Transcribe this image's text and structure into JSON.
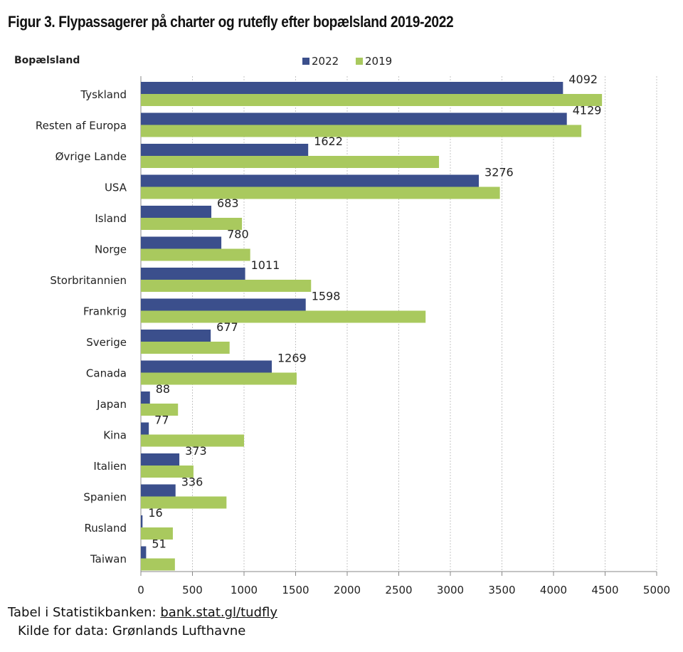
{
  "title": "Figur 3. Flypassagerer på charter og rutefly efter bopælsland 2019-2022",
  "footer": {
    "table_prefix": "Tabel i Statistikbanken:",
    "table_link": "bank.stat.gl/tudfly",
    "source": "Kilde for data: Grønlands Lufthavne"
  },
  "colors": {
    "series_2022": "#3b4f8c",
    "series_2019": "#a9c95e",
    "grid": "#c4c4c4"
  },
  "chart_data": {
    "type": "bar",
    "orientation": "horizontal",
    "ylabel": "Bopælsland",
    "categories": [
      "Tyskland",
      "Resten af Europa",
      "Øvrige Lande",
      "USA",
      "Island",
      "Norge",
      "Storbritannien",
      "Frankrig",
      "Sverige",
      "Canada",
      "Japan",
      "Kina",
      "Italien",
      "Spanien",
      "Rusland",
      "Taiwan"
    ],
    "series": [
      {
        "name": "2022",
        "values": [
          4092,
          4129,
          1622,
          3276,
          683,
          780,
          1011,
          1598,
          677,
          1269,
          88,
          77,
          373,
          336,
          16,
          51
        ],
        "data_labels": [
          "4092",
          "4129",
          "1622",
          "3276",
          "683",
          "780",
          "1011",
          "1598",
          "677",
          "1269",
          "88",
          "77",
          "373",
          "336",
          "16",
          "51"
        ]
      },
      {
        "name": "2019",
        "values": [
          4470,
          4270,
          2890,
          3480,
          980,
          1060,
          1650,
          2760,
          860,
          1510,
          360,
          1000,
          510,
          830,
          310,
          330
        ]
      }
    ],
    "xlim": [
      0,
      5000
    ],
    "xticks": [
      "0",
      "500",
      "1000",
      "1500",
      "2000",
      "2500",
      "3000",
      "3500",
      "4000",
      "4500",
      "5000"
    ],
    "grid": true,
    "legend_position": "top-center"
  }
}
